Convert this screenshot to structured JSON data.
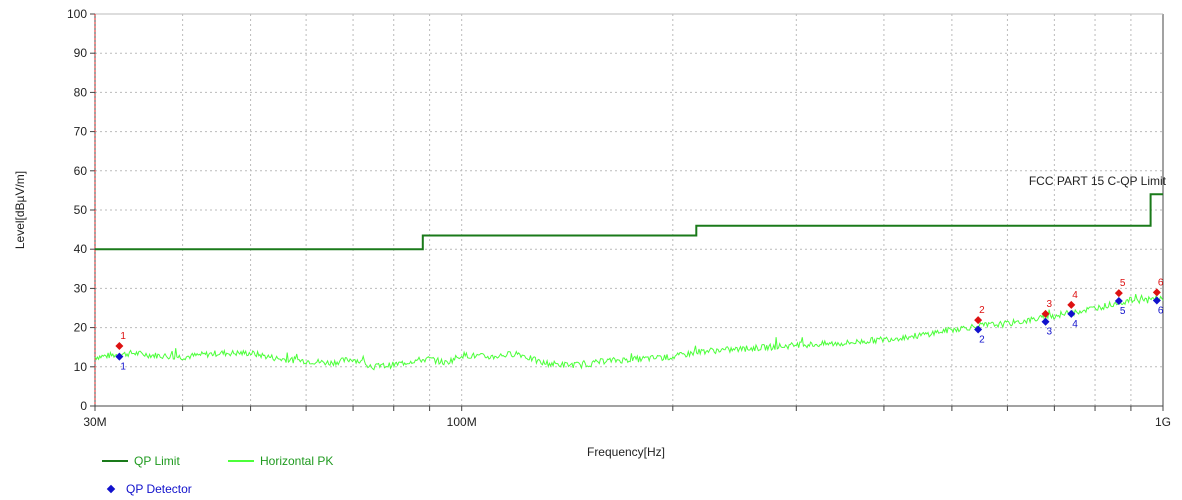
{
  "chart_data": {
    "type": "line",
    "title": "",
    "xlabel": "Frequency[Hz]",
    "ylabel": "Level[dBµV/m]",
    "xscale": "log",
    "xlim": [
      30000000,
      1000000000
    ],
    "ylim": [
      0,
      100
    ],
    "x_tick_labels": [
      {
        "value": 30000000,
        "label": "30M"
      },
      {
        "value": 100000000,
        "label": "100M"
      },
      {
        "value": 1000000000,
        "label": "1G"
      }
    ],
    "y_ticks": [
      0,
      10,
      20,
      30,
      40,
      50,
      60,
      70,
      80,
      90,
      100
    ],
    "grid": true,
    "grid_style": "dashed",
    "limit_annotation": "FCC PART 15 C-QP Limit",
    "colors": {
      "limit": "#1a7a1a",
      "horizontal_pk": "#4cff3a",
      "qp_marker": "#1111cc",
      "pk_marker": "#dd1111",
      "start_marker": "#dd2222",
      "grid": "#bbbbbb",
      "legend_text": "#1f9a1f"
    },
    "series": [
      {
        "name": "QP Limit",
        "kind": "step",
        "x": [
          30000000,
          88000000,
          88000000,
          216000000,
          216000000,
          960000000,
          960000000,
          1000000000
        ],
        "y": [
          40,
          40,
          43.5,
          43.5,
          46,
          46,
          54,
          54
        ]
      },
      {
        "name": "Horizontal PK",
        "kind": "noisy",
        "x": [
          30000000,
          32000000,
          34000000,
          36000000,
          40000000,
          45000000,
          50000000,
          55000000,
          60000000,
          65000000,
          70000000,
          75000000,
          80000000,
          85000000,
          90000000,
          95000000,
          100000000,
          110000000,
          120000000,
          130000000,
          140000000,
          150000000,
          160000000,
          180000000,
          200000000,
          220000000,
          250000000,
          300000000,
          350000000,
          400000000,
          450000000,
          500000000,
          550000000,
          600000000,
          650000000,
          700000000,
          750000000,
          800000000,
          850000000,
          900000000,
          950000000,
          1000000000
        ],
        "y": [
          12.5,
          13,
          13.5,
          13,
          12.5,
          13.5,
          13.5,
          12,
          11.5,
          11,
          12,
          10,
          10.5,
          11.5,
          12,
          11,
          13,
          12.5,
          13.5,
          11,
          10.5,
          10.5,
          11.5,
          12,
          12.5,
          14,
          14.5,
          15.5,
          16,
          17,
          18,
          19.5,
          20.5,
          21,
          22,
          23,
          24,
          25,
          26,
          27,
          27,
          27.5
        ]
      }
    ],
    "markers": [
      {
        "label": "1",
        "x": 32500000,
        "qp": 12.6,
        "pk": 15.3
      },
      {
        "label": "2",
        "x": 545000000,
        "qp": 19.5,
        "pk": 21.9
      },
      {
        "label": "3",
        "x": 680000000,
        "qp": 21.5,
        "pk": 23.5
      },
      {
        "label": "4",
        "x": 740000000,
        "qp": 23.5,
        "pk": 25.8
      },
      {
        "label": "5",
        "x": 865000000,
        "qp": 26.8,
        "pk": 28.8
      },
      {
        "label": "6",
        "x": 980000000,
        "qp": 26.9,
        "pk": 29.0
      }
    ],
    "start_marker_x": 30000000
  },
  "legend": {
    "qp_limit": "QP Limit",
    "horizontal_pk": "Horizontal PK",
    "qp_detector": "QP Detector"
  }
}
